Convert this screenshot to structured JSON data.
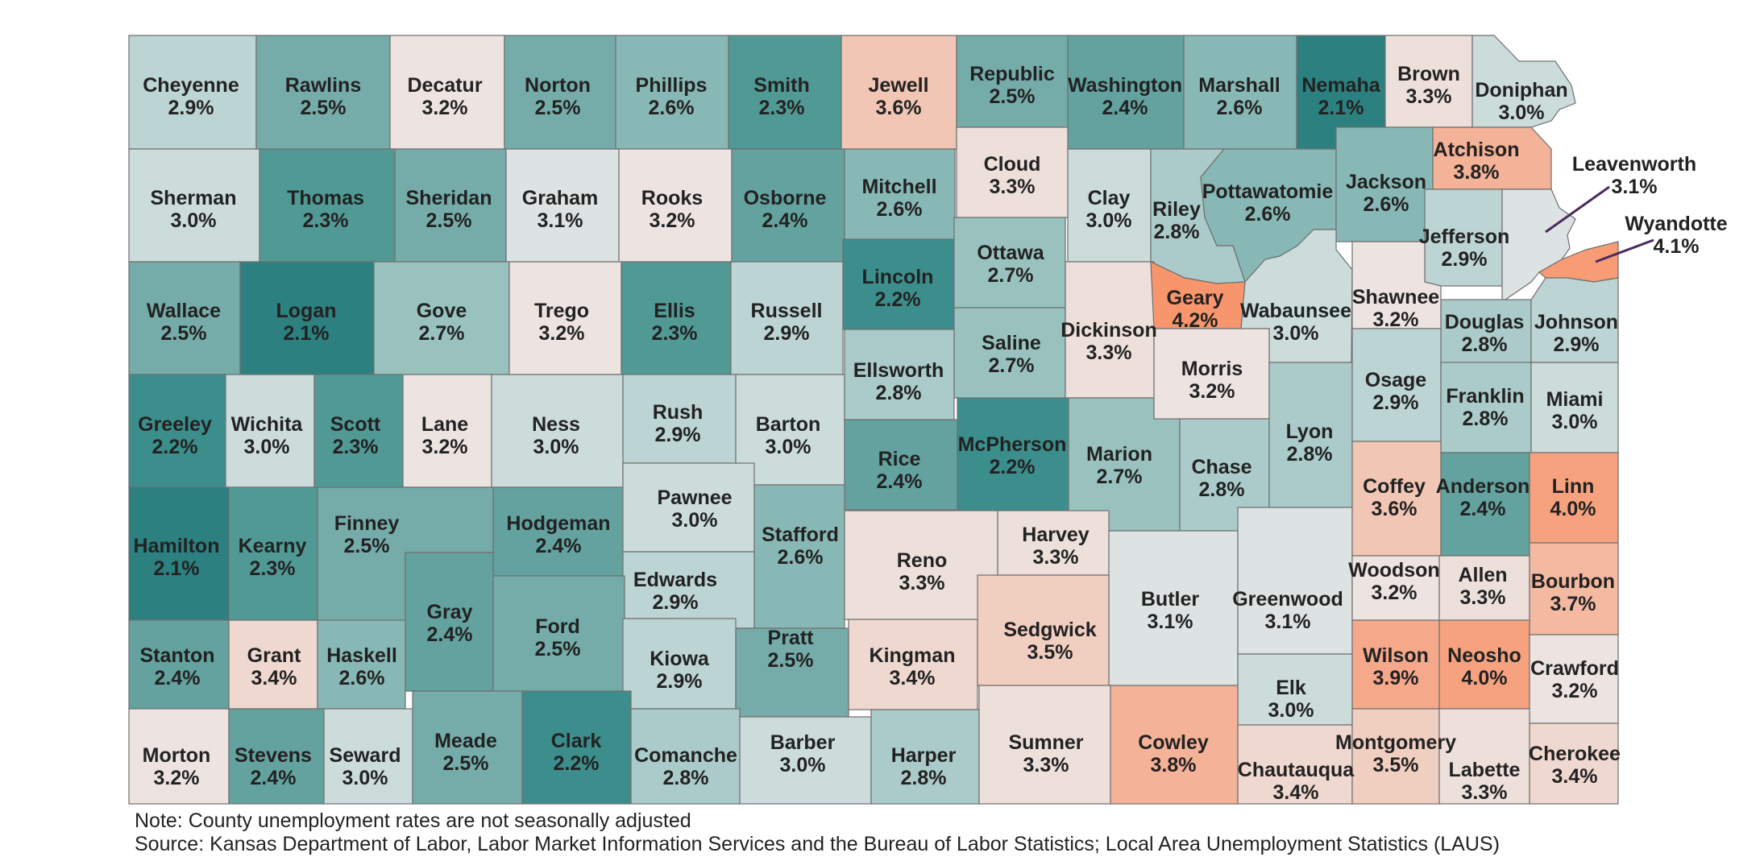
{
  "colors": {
    "c21": "#2d8080",
    "c22": "#3c8e8c",
    "c23": "#519995",
    "c24": "#63a29f",
    "c25": "#75aca9",
    "c26": "#88b8b5",
    "c27": "#99c2bf",
    "c28": "#aacbc9",
    "c29": "#bcd4d3",
    "c30": "#cbdcdb",
    "c31": "#dde2e2",
    "c32": "#ede4e1",
    "c33": "#ede0db",
    "c34": "#efd8cf",
    "c35": "#f0cec0",
    "c36": "#f1c6b4",
    "c37": "#f3b9a1",
    "c38": "#f4b298",
    "c39": "#f5a98a",
    "c40": "#f6a27f",
    "c41": "#f79c75",
    "c42": "#f7966c",
    "border": "#6f6f6f"
  },
  "counties": [
    {
      "name": "Cheyenne",
      "rate": "2.9%"
    },
    {
      "name": "Rawlins",
      "rate": "2.5%"
    },
    {
      "name": "Decatur",
      "rate": "3.2%"
    },
    {
      "name": "Norton",
      "rate": "2.5%"
    },
    {
      "name": "Phillips",
      "rate": "2.6%"
    },
    {
      "name": "Smith",
      "rate": "2.3%"
    },
    {
      "name": "Jewell",
      "rate": "3.6%"
    },
    {
      "name": "Republic",
      "rate": "2.5%"
    },
    {
      "name": "Washington",
      "rate": "2.4%"
    },
    {
      "name": "Marshall",
      "rate": "2.6%"
    },
    {
      "name": "Nemaha",
      "rate": "2.1%"
    },
    {
      "name": "Brown",
      "rate": "3.3%"
    },
    {
      "name": "Doniphan",
      "rate": "3.0%"
    },
    {
      "name": "Sherman",
      "rate": "3.0%"
    },
    {
      "name": "Thomas",
      "rate": "2.3%"
    },
    {
      "name": "Sheridan",
      "rate": "2.5%"
    },
    {
      "name": "Graham",
      "rate": "3.1%"
    },
    {
      "name": "Rooks",
      "rate": "3.2%"
    },
    {
      "name": "Osborne",
      "rate": "2.4%"
    },
    {
      "name": "Mitchell",
      "rate": "2.6%"
    },
    {
      "name": "Cloud",
      "rate": "3.3%"
    },
    {
      "name": "Clay",
      "rate": "3.0%"
    },
    {
      "name": "Riley",
      "rate": "2.8%"
    },
    {
      "name": "Pottawatomie",
      "rate": "2.6%"
    },
    {
      "name": "Jackson",
      "rate": "2.6%"
    },
    {
      "name": "Atchison",
      "rate": "3.8%"
    },
    {
      "name": "Jefferson",
      "rate": "2.9%"
    },
    {
      "name": "Leavenworth",
      "rate": "3.1%"
    },
    {
      "name": "Wyandotte",
      "rate": "4.1%"
    },
    {
      "name": "Wallace",
      "rate": "2.5%"
    },
    {
      "name": "Logan",
      "rate": "2.1%"
    },
    {
      "name": "Gove",
      "rate": "2.7%"
    },
    {
      "name": "Trego",
      "rate": "3.2%"
    },
    {
      "name": "Ellis",
      "rate": "2.3%"
    },
    {
      "name": "Russell",
      "rate": "2.9%"
    },
    {
      "name": "Lincoln",
      "rate": "2.2%"
    },
    {
      "name": "Ottawa",
      "rate": "2.7%"
    },
    {
      "name": "Saline",
      "rate": "2.7%"
    },
    {
      "name": "Dickinson",
      "rate": "3.3%"
    },
    {
      "name": "Geary",
      "rate": "4.2%"
    },
    {
      "name": "Wabaunsee",
      "rate": "3.0%"
    },
    {
      "name": "Shawnee",
      "rate": "3.2%"
    },
    {
      "name": "Douglas",
      "rate": "2.8%"
    },
    {
      "name": "Johnson",
      "rate": "2.9%"
    },
    {
      "name": "Greeley",
      "rate": "2.2%"
    },
    {
      "name": "Wichita",
      "rate": "3.0%"
    },
    {
      "name": "Scott",
      "rate": "2.3%"
    },
    {
      "name": "Lane",
      "rate": "3.2%"
    },
    {
      "name": "Ness",
      "rate": "3.0%"
    },
    {
      "name": "Rush",
      "rate": "2.9%"
    },
    {
      "name": "Barton",
      "rate": "3.0%"
    },
    {
      "name": "Ellsworth",
      "rate": "2.8%"
    },
    {
      "name": "Rice",
      "rate": "2.4%"
    },
    {
      "name": "McPherson",
      "rate": "2.2%"
    },
    {
      "name": "Marion",
      "rate": "2.7%"
    },
    {
      "name": "Morris",
      "rate": "3.2%"
    },
    {
      "name": "Chase",
      "rate": "2.8%"
    },
    {
      "name": "Lyon",
      "rate": "2.8%"
    },
    {
      "name": "Osage",
      "rate": "2.9%"
    },
    {
      "name": "Franklin",
      "rate": "2.8%"
    },
    {
      "name": "Miami",
      "rate": "3.0%"
    },
    {
      "name": "Hamilton",
      "rate": "2.1%"
    },
    {
      "name": "Kearny",
      "rate": "2.3%"
    },
    {
      "name": "Finney",
      "rate": "2.5%"
    },
    {
      "name": "Hodgeman",
      "rate": "2.4%"
    },
    {
      "name": "Pawnee",
      "rate": "3.0%"
    },
    {
      "name": "Stafford",
      "rate": "2.6%"
    },
    {
      "name": "Reno",
      "rate": "3.3%"
    },
    {
      "name": "Harvey",
      "rate": "3.3%"
    },
    {
      "name": "Butler",
      "rate": "3.1%"
    },
    {
      "name": "Greenwood",
      "rate": "3.1%"
    },
    {
      "name": "Coffey",
      "rate": "3.6%"
    },
    {
      "name": "Anderson",
      "rate": "2.4%"
    },
    {
      "name": "Linn",
      "rate": "4.0%"
    },
    {
      "name": "Edwards",
      "rate": "2.9%"
    },
    {
      "name": "Gray",
      "rate": "2.4%"
    },
    {
      "name": "Ford",
      "rate": "2.5%"
    },
    {
      "name": "Woodson",
      "rate": "3.2%"
    },
    {
      "name": "Allen",
      "rate": "3.3%"
    },
    {
      "name": "Bourbon",
      "rate": "3.7%"
    },
    {
      "name": "Stanton",
      "rate": "2.4%"
    },
    {
      "name": "Grant",
      "rate": "3.4%"
    },
    {
      "name": "Haskell",
      "rate": "2.6%"
    },
    {
      "name": "Kiowa",
      "rate": "2.9%"
    },
    {
      "name": "Pratt",
      "rate": "2.5%"
    },
    {
      "name": "Kingman",
      "rate": "3.4%"
    },
    {
      "name": "Sedgwick",
      "rate": "3.5%"
    },
    {
      "name": "Wilson",
      "rate": "3.9%"
    },
    {
      "name": "Neosho",
      "rate": "4.0%"
    },
    {
      "name": "Elk",
      "rate": "3.0%"
    },
    {
      "name": "Crawford",
      "rate": "3.2%"
    },
    {
      "name": "Morton",
      "rate": "3.2%"
    },
    {
      "name": "Stevens",
      "rate": "2.4%"
    },
    {
      "name": "Seward",
      "rate": "3.0%"
    },
    {
      "name": "Meade",
      "rate": "2.5%"
    },
    {
      "name": "Clark",
      "rate": "2.2%"
    },
    {
      "name": "Comanche",
      "rate": "2.8%"
    },
    {
      "name": "Barber",
      "rate": "3.0%"
    },
    {
      "name": "Harper",
      "rate": "2.8%"
    },
    {
      "name": "Sumner",
      "rate": "3.3%"
    },
    {
      "name": "Cowley",
      "rate": "3.8%"
    },
    {
      "name": "Chautauqua",
      "rate": "3.4%"
    },
    {
      "name": "Montgomery",
      "rate": "3.5%"
    },
    {
      "name": "Labette",
      "rate": "3.3%"
    },
    {
      "name": "Cherokee",
      "rate": "3.4%"
    }
  ],
  "note": "Note: County unemployment rates are not seasonally adjusted",
  "source": "Source: Kansas Department of Labor, Labor Market Information Services and the Bureau of Labor Statistics; Local Area Unemployment Statistics (LAUS)"
}
